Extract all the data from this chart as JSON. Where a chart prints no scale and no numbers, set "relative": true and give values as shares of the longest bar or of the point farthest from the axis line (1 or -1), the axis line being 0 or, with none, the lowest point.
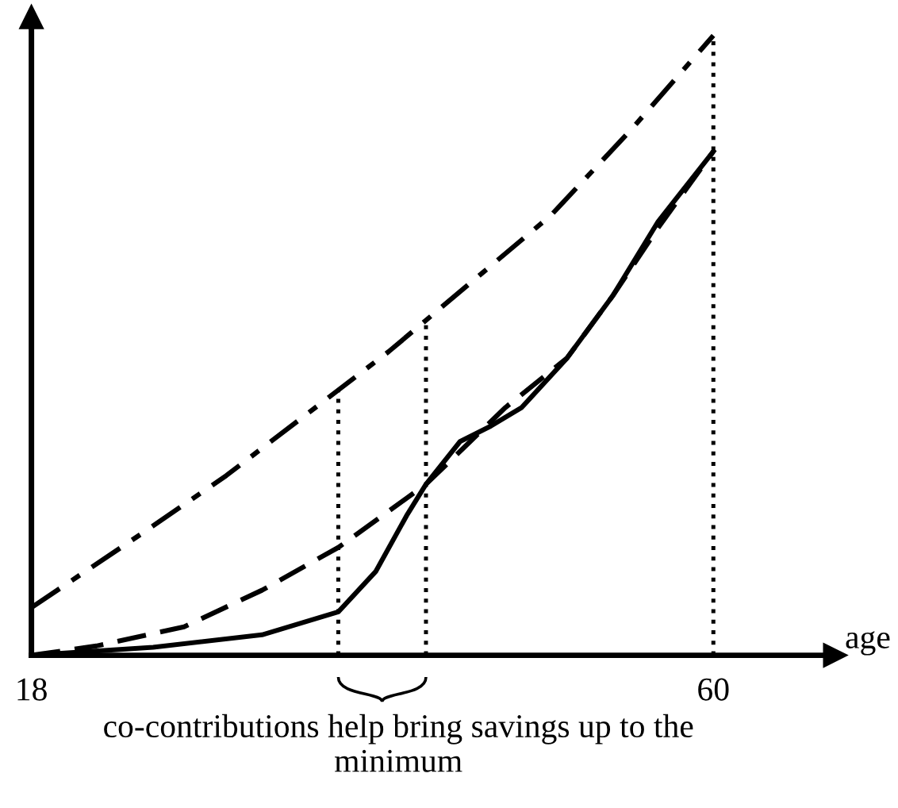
{
  "chart_data": {
    "type": "line",
    "relative": true,
    "xlabel": "age",
    "xlim": [
      18,
      67.5
    ],
    "xticks": [
      18,
      60
    ],
    "grid": false,
    "legend": false,
    "series": [
      {
        "color": "#000000",
        "line_style": "dashdot",
        "x": [
          18,
          25,
          30,
          35,
          40,
          45,
          50,
          55,
          60
        ],
        "values": [
          0.077,
          0.2,
          0.29,
          0.39,
          0.49,
          0.6,
          0.71,
          0.85,
          1.0
        ]
      },
      {
        "color": "#000000",
        "line_style": "dashed",
        "x": [
          18,
          22,
          27.4,
          32.2,
          36.9,
          42.3,
          47.2,
          51,
          53.8,
          56.6,
          60
        ],
        "values": [
          0,
          0.015,
          0.046,
          0.105,
          0.174,
          0.276,
          0.4,
          0.48,
          0.58,
          0.69,
          0.813
        ]
      },
      {
        "color": "#000000",
        "line_style": "solid",
        "x": [
          18,
          25.5,
          32.2,
          36.9,
          39.2,
          41.1,
          42.3,
          44.4,
          46.3,
          48.2,
          51,
          53.8,
          56.6,
          60
        ],
        "values": [
          0,
          0.013,
          0.033,
          0.07,
          0.135,
          0.225,
          0.276,
          0.345,
          0.37,
          0.4,
          0.48,
          0.58,
          0.7,
          0.813
        ]
      }
    ],
    "ref_lines": [
      {
        "axis": "x",
        "value": 36.9,
        "line_style": "dotted"
      },
      {
        "axis": "x",
        "value": 42.3,
        "line_style": "dotted"
      },
      {
        "axis": "x",
        "value": 60,
        "line_style": "dotted"
      }
    ],
    "annotations": [
      "co-contributions help bring savings up to the minimum"
    ]
  }
}
